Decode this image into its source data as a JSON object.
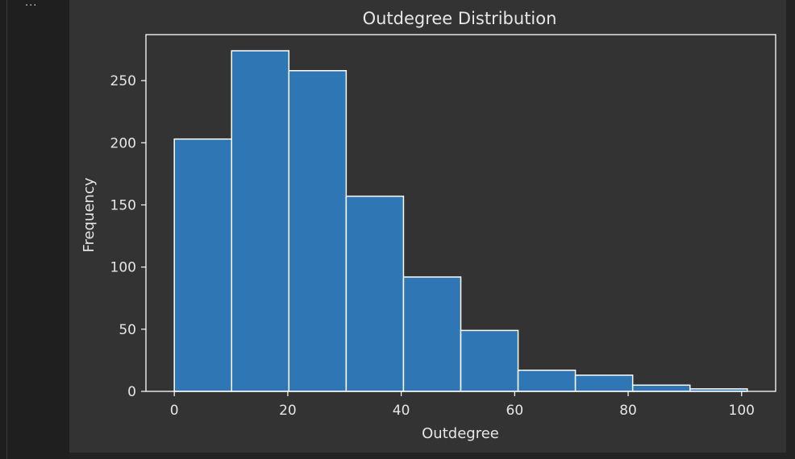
{
  "cell": {
    "collapse_label": "..."
  },
  "chart_data": {
    "type": "bar",
    "title": "Outdegree Distribution",
    "xlabel": "Outdegree",
    "ylabel": "Frequency",
    "xlim": [
      -5,
      106
    ],
    "ylim": [
      0,
      287
    ],
    "xticks": [
      0,
      20,
      40,
      60,
      80,
      100
    ],
    "yticks": [
      0,
      50,
      100,
      150,
      200,
      250
    ],
    "bin_edges": [
      0,
      10.1,
      20.2,
      30.3,
      40.4,
      50.5,
      60.6,
      70.7,
      80.8,
      90.9,
      101
    ],
    "values": [
      203,
      274,
      258,
      157,
      92,
      49,
      17,
      13,
      5,
      2
    ],
    "bar_color": "#2f77b4",
    "edge_color": "#ffffff",
    "background": "#333333",
    "text_color": "#e6e6e6",
    "grid": false
  }
}
